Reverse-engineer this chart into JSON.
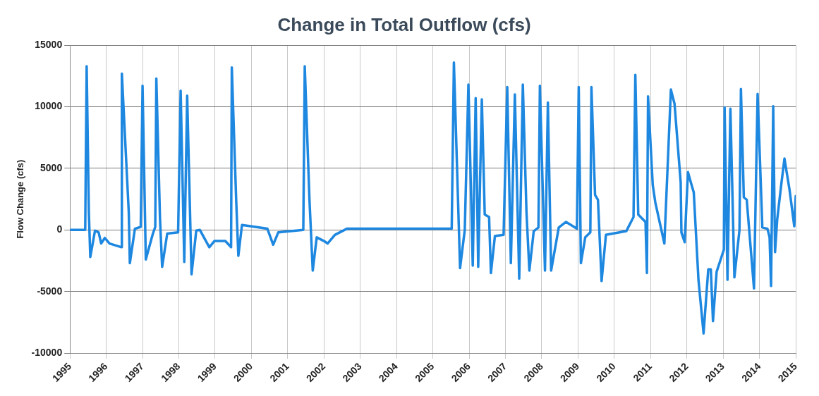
{
  "chart_data": {
    "type": "line",
    "title": "Change in Total Outflow (cfs)",
    "ylabel": "Flow Change (cfs)",
    "x": [
      1995.0,
      1995.42,
      1995.46,
      1995.52,
      1995.56,
      1995.69,
      1995.79,
      1995.86,
      1995.96,
      1996.09,
      1996.42,
      1996.43,
      1996.62,
      1996.65,
      1996.79,
      1996.95,
      1997.0,
      1997.09,
      1997.28,
      1997.35,
      1997.38,
      1997.48,
      1997.54,
      1997.68,
      1997.98,
      1998.05,
      1998.15,
      1998.23,
      1998.35,
      1998.48,
      1998.58,
      1998.84,
      1998.98,
      1999.28,
      1999.44,
      1999.46,
      1999.58,
      1999.64,
      1999.74,
      2000.44,
      2000.6,
      2000.74,
      2001.43,
      2001.47,
      2001.6,
      2001.69,
      2001.8,
      2002.0,
      2002.1,
      2002.3,
      2002.63,
      2003.63,
      2005.52,
      2005.58,
      2005.75,
      2005.88,
      2005.98,
      2006.1,
      2006.18,
      2006.25,
      2006.35,
      2006.43,
      2006.55,
      2006.6,
      2006.71,
      2006.95,
      2007.05,
      2007.15,
      2007.26,
      2007.38,
      2007.48,
      2007.58,
      2007.66,
      2007.78,
      2007.91,
      2007.95,
      2008.09,
      2008.17,
      2008.26,
      2008.47,
      2008.67,
      2008.97,
      2009.02,
      2009.08,
      2009.2,
      2009.34,
      2009.37,
      2009.47,
      2009.55,
      2009.65,
      2009.77,
      2010.33,
      2010.53,
      2010.58,
      2010.66,
      2010.86,
      2010.9,
      2010.93,
      2011.06,
      2011.13,
      2011.38,
      2011.56,
      2011.66,
      2011.83,
      2011.85,
      2011.94,
      2012.03,
      2012.13,
      2012.19,
      2012.32,
      2012.46,
      2012.59,
      2012.66,
      2012.72,
      2012.82,
      2013.02,
      2013.04,
      2013.12,
      2013.2,
      2013.31,
      2013.45,
      2013.49,
      2013.57,
      2013.65,
      2013.85,
      2013.95,
      2014.08,
      2014.22,
      2014.28,
      2014.32,
      2014.38,
      2014.43,
      2014.49,
      2014.6,
      2014.69,
      2014.83,
      2014.96,
      2015.0
    ],
    "series": [
      {
        "color": "#1e88e0",
        "values": [
          0,
          0,
          13300,
          1450,
          -2200,
          -50,
          -200,
          -1100,
          -650,
          -1100,
          -1400,
          12700,
          1450,
          -2700,
          100,
          250,
          11700,
          -2400,
          -350,
          250,
          12300,
          1000,
          -3000,
          -300,
          -200,
          11300,
          -2600,
          10900,
          -3600,
          -50,
          0,
          -1400,
          -900,
          -900,
          -1400,
          13200,
          2450,
          -2100,
          400,
          100,
          -1200,
          -200,
          0,
          13300,
          2450,
          -3300,
          -600,
          -900,
          -1100,
          -400,
          100,
          100,
          100,
          13600,
          -3100,
          0,
          11800,
          -2900,
          10700,
          -3000,
          10600,
          1250,
          1050,
          -3500,
          -500,
          -400,
          11600,
          -2700,
          11000,
          -3950,
          11800,
          1450,
          -3300,
          -100,
          200,
          11700,
          -3300,
          10350,
          -3300,
          200,
          650,
          100,
          11600,
          -2700,
          -600,
          -200,
          11600,
          2850,
          2450,
          -4150,
          -400,
          -100,
          1050,
          12600,
          1250,
          650,
          -3500,
          10850,
          3650,
          2250,
          -1100,
          11400,
          10250,
          3850,
          -200,
          -1000,
          4700,
          3650,
          3050,
          -4050,
          -8400,
          -3200,
          -3200,
          -7400,
          -3400,
          -1600,
          9950,
          -4050,
          9850,
          -3850,
          0,
          11450,
          2650,
          2450,
          -4750,
          11050,
          200,
          100,
          -600,
          -4550,
          10050,
          -1800,
          850,
          3650,
          5800,
          3250,
          300,
          2750
        ]
      }
    ],
    "xlim": [
      1995,
      2015
    ],
    "xticks": [
      1995,
      1996,
      1997,
      1998,
      1999,
      2000,
      2001,
      2002,
      2003,
      2004,
      2005,
      2006,
      2007,
      2008,
      2009,
      2010,
      2011,
      2012,
      2013,
      2014,
      2015
    ],
    "ylim": [
      -10000,
      15000
    ],
    "yticks": [
      -10000,
      -5000,
      0,
      5000,
      10000,
      15000
    ],
    "grid": true,
    "legend": false,
    "marker": "none",
    "line_style": "solid"
  }
}
